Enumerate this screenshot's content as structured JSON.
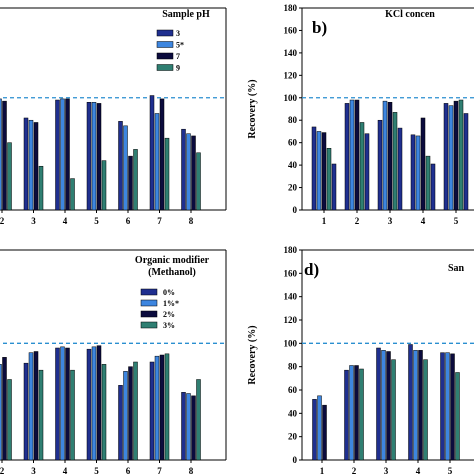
{
  "colors": {
    "series": [
      "#1f2f8f",
      "#3d86e0",
      "#0b0b3d",
      "#2f7f72"
    ],
    "reference_line": "#2a8fd0"
  },
  "chart_data": [
    {
      "type": "bar",
      "panel_label": "",
      "legend_title": "Sample pH",
      "legend_position": "top-right",
      "ylabel": "",
      "ylim": [
        0,
        180
      ],
      "y_ticks": [],
      "reference_line": 100,
      "categories": [
        "2",
        "3",
        "4",
        "5",
        "6",
        "7",
        "8"
      ],
      "series": [
        {
          "name": "3",
          "values": [
            98,
            82,
            98,
            96,
            79,
            102,
            72
          ]
        },
        {
          "name": "5*",
          "values": [
            99,
            80,
            99,
            96,
            75,
            86,
            68
          ]
        },
        {
          "name": "7",
          "values": [
            97,
            78,
            99,
            95,
            48,
            99,
            66
          ]
        },
        {
          "name": "9",
          "values": [
            60,
            39,
            28,
            44,
            54,
            64,
            51
          ]
        }
      ]
    },
    {
      "type": "bar",
      "panel_label": "b)",
      "legend_title": "KCl concen",
      "legend_position": "top-right",
      "ylabel": "Recovery (%)",
      "ylim": [
        0,
        180
      ],
      "y_ticks": [
        "0",
        "20",
        "40",
        "60",
        "80",
        "100",
        "120",
        "140",
        "160",
        "180"
      ],
      "reference_line": 100,
      "categories": [
        "1",
        "2",
        "3",
        "4",
        "5"
      ],
      "series": [
        {
          "name": "",
          "values": [
            74,
            95,
            80,
            67,
            95
          ]
        },
        {
          "name": "",
          "values": [
            70,
            98,
            97,
            66,
            93
          ]
        },
        {
          "name": "",
          "values": [
            69,
            98,
            96,
            82,
            97
          ]
        },
        {
          "name": "",
          "values": [
            55,
            78,
            87,
            48,
            98
          ]
        },
        {
          "name": "",
          "values": [
            41,
            68,
            73,
            41,
            86
          ]
        }
      ]
    },
    {
      "type": "bar",
      "panel_label": "",
      "legend_title": "Organic modifier\n(Methanol)",
      "legend_position": "top-right",
      "ylabel": "",
      "ylim": [
        0,
        180
      ],
      "y_ticks": [],
      "reference_line": 100,
      "categories": [
        "2",
        "3",
        "4",
        "5",
        "6",
        "7",
        "8"
      ],
      "series": [
        {
          "name": "0%",
          "values": [
            85,
            83,
            96,
            95,
            64,
            84,
            58
          ]
        },
        {
          "name": "1%*",
          "values": [
            82,
            92,
            97,
            97,
            76,
            89,
            57
          ]
        },
        {
          "name": "2%",
          "values": [
            88,
            93,
            96,
            98,
            80,
            90,
            55
          ]
        },
        {
          "name": "3%",
          "values": [
            69,
            77,
            77,
            82,
            84,
            91,
            69
          ]
        }
      ]
    },
    {
      "type": "bar",
      "panel_label": "d)",
      "legend_title": "San",
      "legend_position": "top-right",
      "ylabel": "Recovery (%)",
      "ylim": [
        0,
        180
      ],
      "y_ticks": [
        "0",
        "20",
        "40",
        "60",
        "80",
        "100",
        "120",
        "140",
        "160",
        "180"
      ],
      "reference_line": 100,
      "categories": [
        "1",
        "2",
        "3",
        "4",
        "5"
      ],
      "series": [
        {
          "name": "",
          "values": [
            52,
            77,
            96,
            99,
            92
          ]
        },
        {
          "name": "",
          "values": [
            55,
            81,
            94,
            94,
            92
          ]
        },
        {
          "name": "",
          "values": [
            47,
            81,
            93,
            94,
            91
          ]
        },
        {
          "name": "",
          "values": [
            0,
            78,
            86,
            86,
            75
          ]
        }
      ]
    }
  ]
}
